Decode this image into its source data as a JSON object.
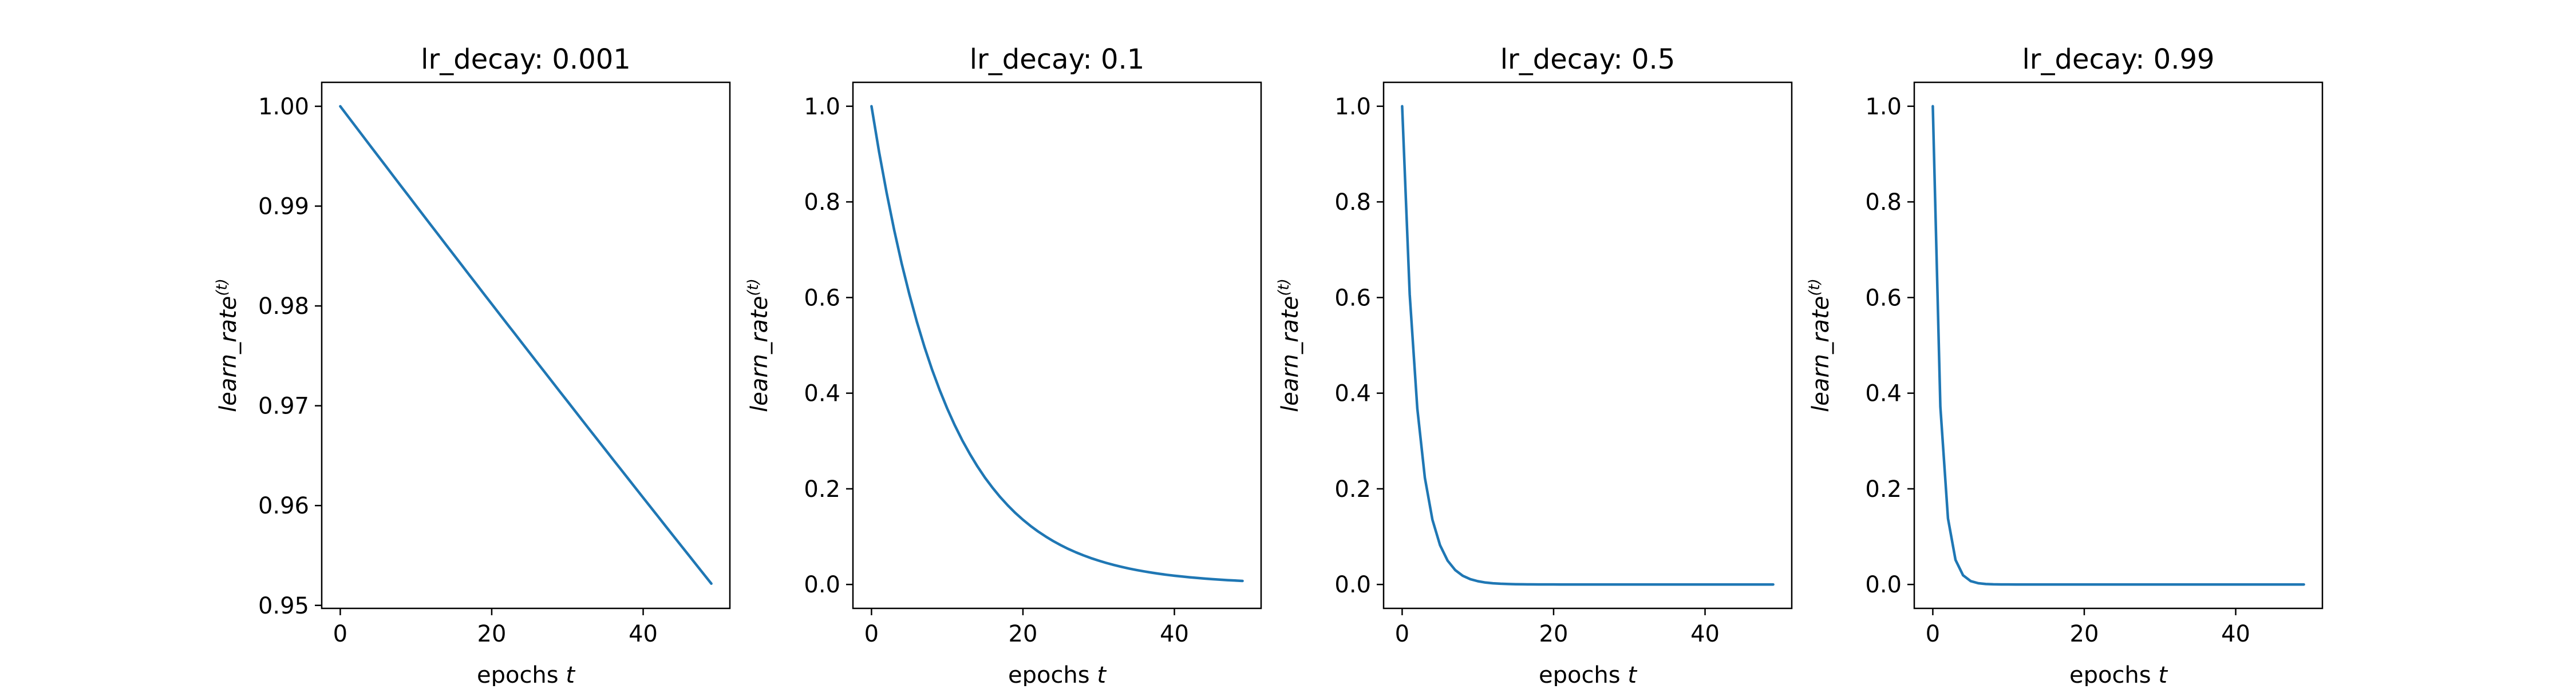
{
  "figure": {
    "line_color": "#1f77b4"
  },
  "chart_data": [
    {
      "type": "line",
      "title": "lr_decay: 0.001",
      "xlabel_text": "epochs",
      "xlabel_var": "t",
      "ylabel_text": "learn_rate",
      "ylabel_sup": "(t)",
      "xlim": [
        -2.45,
        51.45
      ],
      "ylim": [
        0.9497,
        1.0024
      ],
      "xticks": [
        0,
        20,
        40
      ],
      "yticks": [
        0.95,
        0.96,
        0.97,
        0.98,
        0.99,
        1.0
      ],
      "ytick_labels": [
        "0.95",
        "0.96",
        "0.97",
        "0.98",
        "0.99",
        "1.00"
      ],
      "series": [
        {
          "decay": 0.001,
          "x_start": 0,
          "x_end": 49,
          "y0": 1.0
        }
      ]
    },
    {
      "type": "line",
      "title": "lr_decay: 0.1",
      "xlabel_text": "epochs",
      "xlabel_var": "t",
      "ylabel_text": "learn_rate",
      "ylabel_sup": "(t)",
      "xlim": [
        -2.45,
        51.45
      ],
      "ylim": [
        -0.05,
        1.05
      ],
      "xticks": [
        0,
        20,
        40
      ],
      "yticks": [
        0.0,
        0.2,
        0.4,
        0.6,
        0.8,
        1.0
      ],
      "ytick_labels": [
        "0.0",
        "0.2",
        "0.4",
        "0.6",
        "0.8",
        "1.0"
      ],
      "series": [
        {
          "decay": 0.1,
          "x_start": 0,
          "x_end": 49,
          "y0": 1.0
        }
      ]
    },
    {
      "type": "line",
      "title": "lr_decay: 0.5",
      "xlabel_text": "epochs",
      "xlabel_var": "t",
      "ylabel_text": "learn_rate",
      "ylabel_sup": "(t)",
      "xlim": [
        -2.45,
        51.45
      ],
      "ylim": [
        -0.05,
        1.05
      ],
      "xticks": [
        0,
        20,
        40
      ],
      "yticks": [
        0.0,
        0.2,
        0.4,
        0.6,
        0.8,
        1.0
      ],
      "ytick_labels": [
        "0.0",
        "0.2",
        "0.4",
        "0.6",
        "0.8",
        "1.0"
      ],
      "series": [
        {
          "decay": 0.5,
          "x_start": 0,
          "x_end": 49,
          "y0": 1.0
        }
      ]
    },
    {
      "type": "line",
      "title": "lr_decay: 0.99",
      "xlabel_text": "epochs",
      "xlabel_var": "t",
      "ylabel_text": "learn_rate",
      "ylabel_sup": "(t)",
      "xlim": [
        -2.45,
        51.45
      ],
      "ylim": [
        -0.05,
        1.05
      ],
      "xticks": [
        0,
        20,
        40
      ],
      "yticks": [
        0.0,
        0.2,
        0.4,
        0.6,
        0.8,
        1.0
      ],
      "ytick_labels": [
        "0.0",
        "0.2",
        "0.4",
        "0.6",
        "0.8",
        "1.0"
      ],
      "series": [
        {
          "decay": 0.99,
          "x_start": 0,
          "x_end": 49,
          "y0": 1.0
        }
      ]
    }
  ]
}
